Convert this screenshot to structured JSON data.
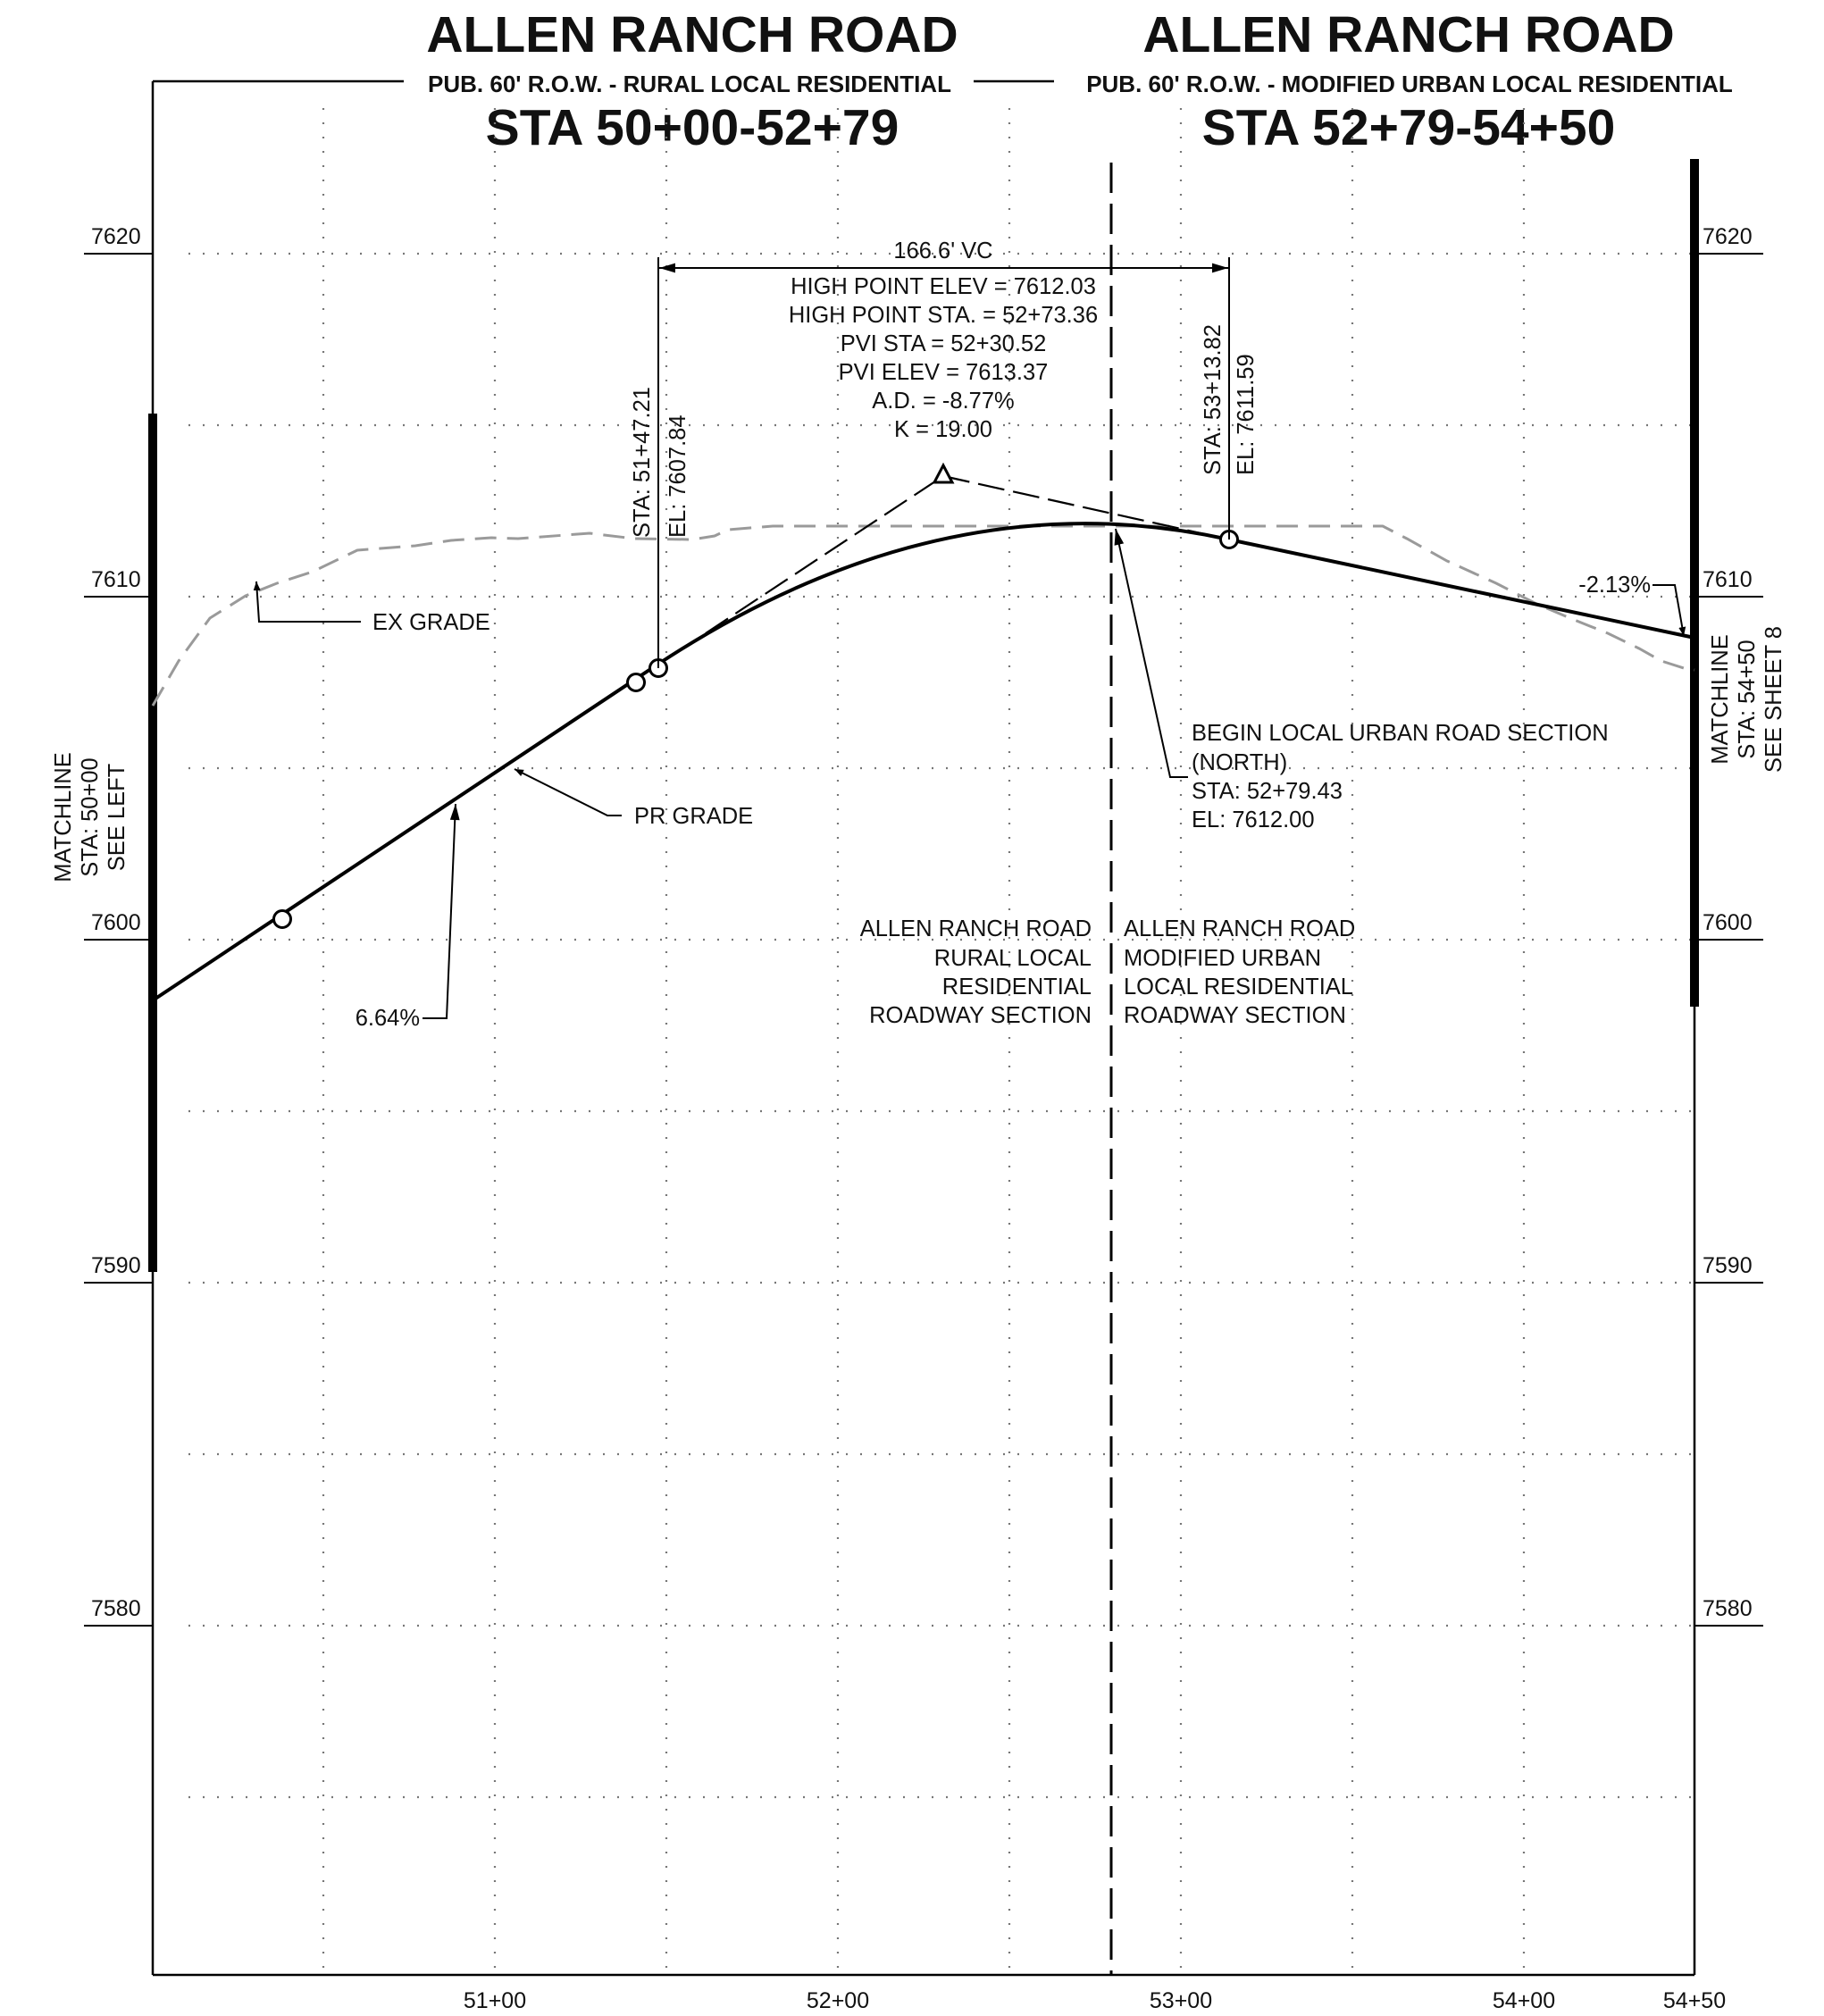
{
  "header": {
    "left": {
      "title": "ALLEN RANCH ROAD",
      "subtitle": "PUB. 60' R.O.W. - RURAL LOCAL RESIDENTIAL",
      "station_range": "STA 50+00-52+79"
    },
    "right": {
      "title": "ALLEN RANCH ROAD",
      "subtitle": "PUB. 60' R.O.W. - MODIFIED URBAN LOCAL RESIDENTIAL",
      "station_range": "STA 52+79-54+50"
    }
  },
  "axes": {
    "elevation_labels": [
      "7620",
      "7610",
      "7600",
      "7590",
      "7580"
    ],
    "station_labels": [
      "51+00",
      "52+00",
      "53+00",
      "54+00",
      "54+50"
    ]
  },
  "vertical_curve": {
    "length_label": "166.6' VC",
    "high_point_elev": "HIGH POINT ELEV = 7612.03",
    "high_point_sta": "HIGH POINT STA. = 52+73.36",
    "pvi_sta": "PVI STA = 52+30.52",
    "pvi_elev": "PVI ELEV = 7613.37",
    "algebraic_difference": "A.D. = -8.77%",
    "k_value": "K = 19.00"
  },
  "pvc": {
    "sta": "STA: 51+47.21",
    "elev": "EL: 7607.84"
  },
  "pvt": {
    "sta": "STA: 53+13.82",
    "elev": "EL: 7611.59"
  },
  "labels": {
    "ex_grade": "EX GRADE",
    "pr_grade": "PR GRADE",
    "grade_in": "6.64%",
    "grade_out": "-2.13%"
  },
  "begin_section": {
    "line1": "BEGIN LOCAL URBAN ROAD SECTION",
    "line2": "(NORTH)",
    "sta": "STA: 52+79.43",
    "elev": "EL: 7612.00"
  },
  "section_left": [
    "ALLEN RANCH ROAD",
    "RURAL LOCAL",
    "RESIDENTIAL",
    "ROADWAY SECTION"
  ],
  "section_right": [
    "ALLEN RANCH ROAD",
    "MODIFIED URBAN",
    "LOCAL RESIDENTIAL",
    "ROADWAY SECTION"
  ],
  "matchline_left": [
    "MATCHLINE",
    "STA: 50+00",
    "SEE LEFT"
  ],
  "matchline_right": [
    "MATCHLINE",
    "STA: 54+50",
    "SEE SHEET 8"
  ],
  "colors": {
    "proposed_grade": "#000000",
    "existing_grade": "#9a9a9a",
    "grid": "#777777"
  }
}
